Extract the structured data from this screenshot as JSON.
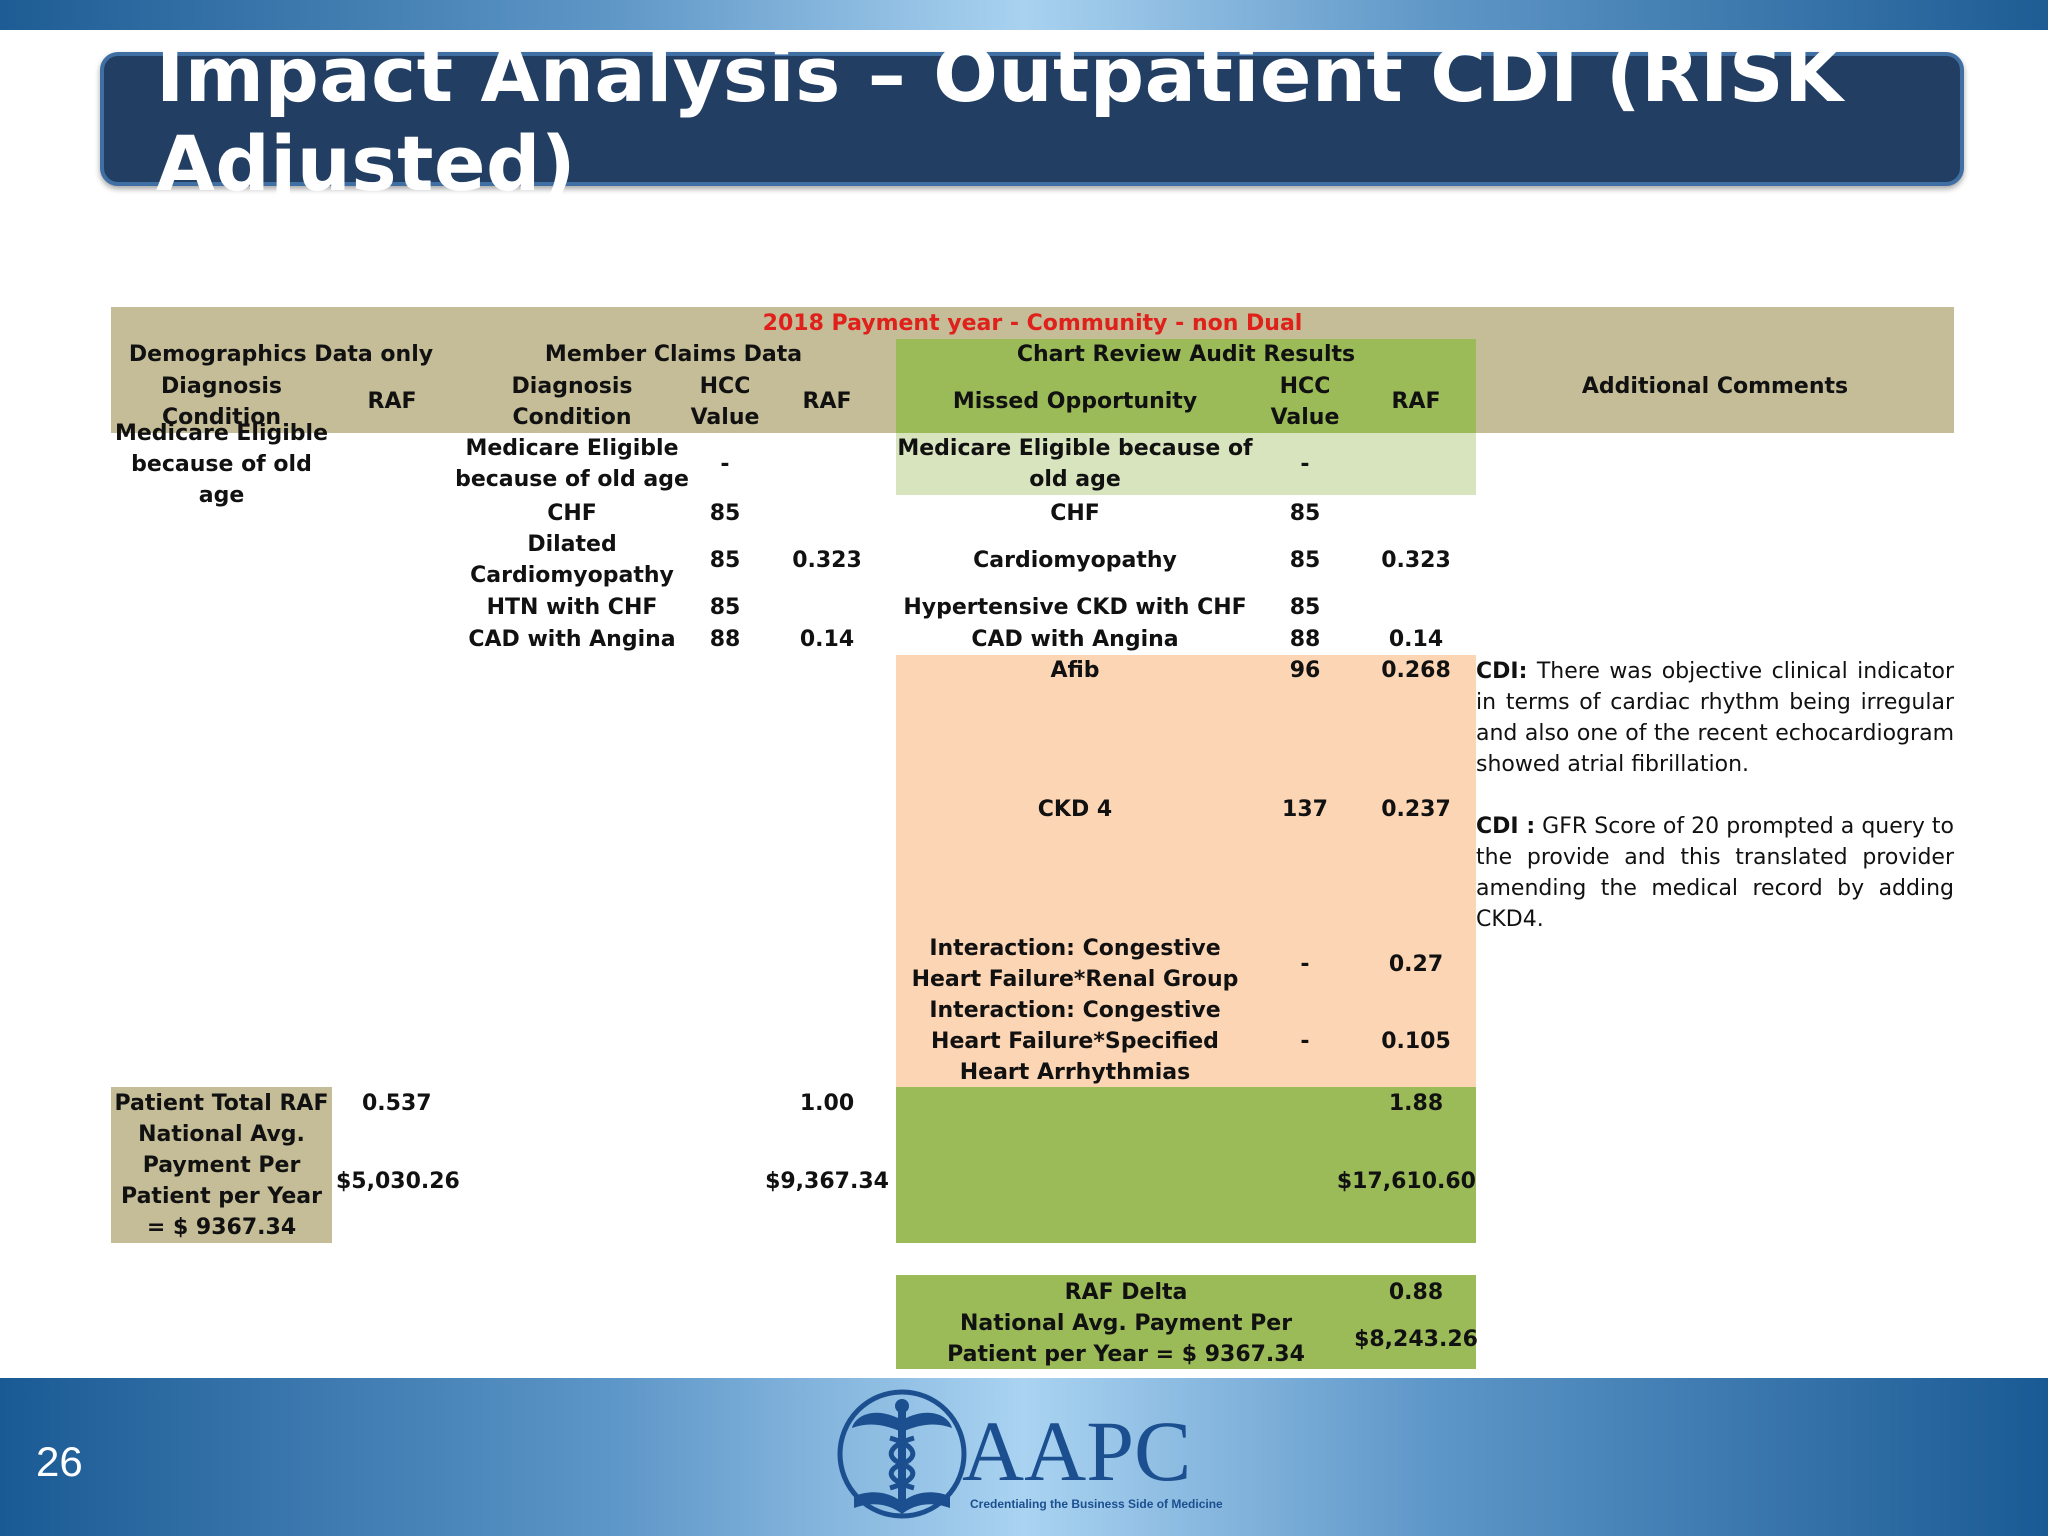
{
  "slide": {
    "title": "Impact Analysis – Outpatient CDI (RISK Adjusted)",
    "page_number": "26"
  },
  "table": {
    "banner": "2018 Payment year - Community  - non Dual",
    "groups": {
      "demographics": "Demographics Data only",
      "claims": "Member Claims Data",
      "chart_review": "Chart Review Audit Results",
      "comments": "Additional Comments"
    },
    "columns": {
      "demo_diag": "Diagnosis Condition",
      "demo_raf": "RAF",
      "claims_diag": "Diagnosis Condition",
      "claims_hcc": "HCC Value",
      "claims_raf": "RAF",
      "missed": "Missed Opportunity",
      "chart_hcc": "HCC Value",
      "chart_raf": "RAF"
    },
    "rows": {
      "demo_diag_1": "Medicare Eligible because of old age",
      "claims": [
        {
          "diag": "Medicare Eligible because of old age",
          "hcc": "-",
          "raf": ""
        },
        {
          "diag": "CHF",
          "hcc": "85",
          "raf": ""
        },
        {
          "diag": "Dilated Cardiomyopathy",
          "hcc": "85",
          "raf": "0.323"
        },
        {
          "diag": "HTN with CHF",
          "hcc": "85",
          "raf": ""
        },
        {
          "diag": "CAD with Angina",
          "hcc": "88",
          "raf": "0.14"
        }
      ],
      "chart": [
        {
          "diag": "Medicare Eligible because of old age",
          "hcc": "-",
          "raf": ""
        },
        {
          "diag": "CHF",
          "hcc": "85",
          "raf": ""
        },
        {
          "diag": "Cardiomyopathy",
          "hcc": "85",
          "raf": "0.323"
        },
        {
          "diag": "Hypertensive CKD with CHF",
          "hcc": "85",
          "raf": ""
        },
        {
          "diag": "CAD with Angina",
          "hcc": "88",
          "raf": "0.14"
        },
        {
          "diag": "Afib",
          "hcc": "96",
          "raf": "0.268"
        },
        {
          "diag": "CKD 4",
          "hcc": "137",
          "raf": "0.237"
        },
        {
          "diag": "Interaction: Congestive Heart Failure*Renal Group",
          "hcc": "-",
          "raf": "0.27"
        },
        {
          "diag": "Interaction: Congestive Heart Failure*Specified Heart Arrhythmias",
          "hcc": "-",
          "raf": "0.105"
        }
      ]
    },
    "comments": {
      "afib_label": "CDI:",
      "afib_text": " There was objective clinical indicator in terms of cardiac rhythm being irregular and also one of the recent echocardiogram showed atrial fibrillation.",
      "ckd_label": "CDI :",
      "ckd_text": " GFR Score of 20 prompted a query to the provide and this translated provider amending the medical record by adding CKD4."
    },
    "totals": {
      "total_label": "Patient Total RAF",
      "demo_total": "0.537",
      "claims_total": "1.00",
      "chart_total": "1.88",
      "payment_label": "National Avg. Payment Per Patient per Year = $ 9367.34",
      "demo_payment": "$5,030.26",
      "claims_payment": "$9,367.34",
      "chart_payment": "$17,610.60"
    },
    "delta": {
      "raf_label": "RAF Delta",
      "raf_value": "0.88",
      "payment_label": "National Avg. Payment Per Patient per Year = $ 9367.34",
      "payment_value": "$8,243.26"
    }
  },
  "logo": {
    "name": "AAPC",
    "tagline": "Credentialing the Business Side of Medicine"
  }
}
